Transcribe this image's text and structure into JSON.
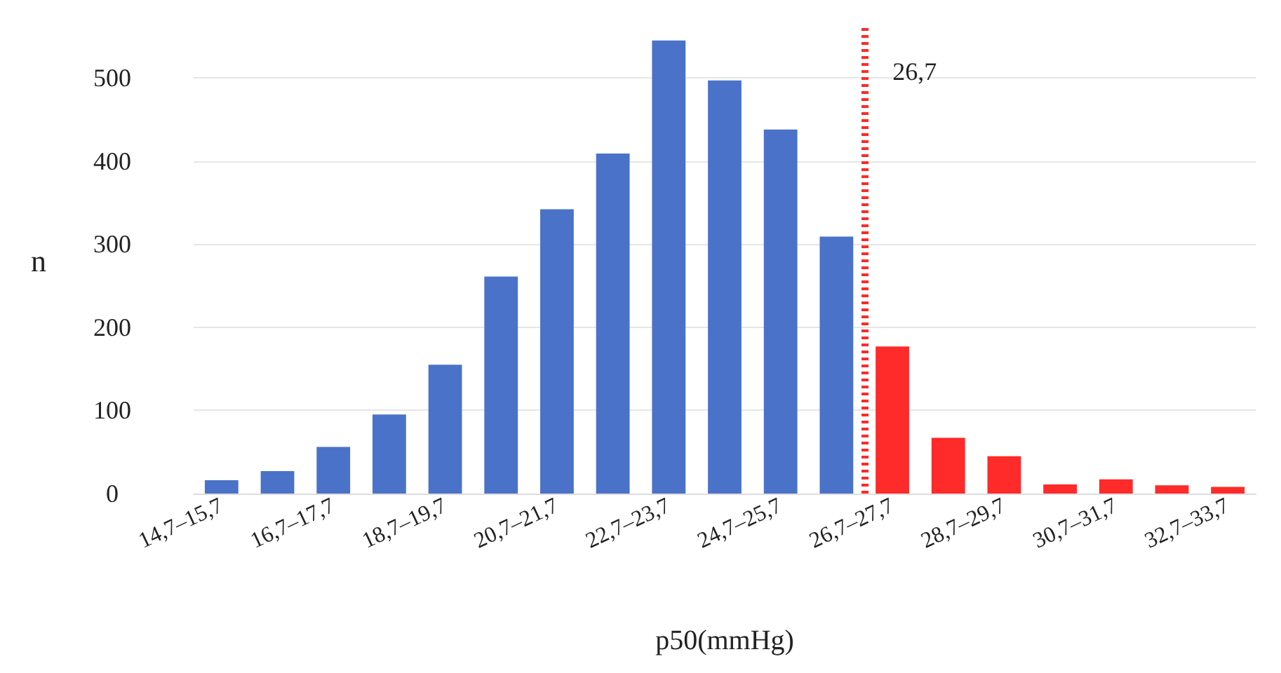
{
  "chart_data": {
    "type": "bar",
    "xlabel": "p50(mmHg)",
    "ylabel": "n",
    "categories": [
      "14,7–15,7",
      null,
      "16,7–17,7",
      null,
      "18,7–19,7",
      null,
      "20,7–21,7",
      null,
      "22,7–23,7",
      null,
      "24,7–25,7",
      null,
      "26,7–27,7",
      null,
      "28,7–29,7",
      null,
      "30,7–31,7",
      null,
      "32,7–33,7"
    ],
    "values": [
      16,
      27,
      56,
      95,
      155,
      261,
      342,
      409,
      545,
      497,
      438,
      309,
      177,
      67,
      45,
      11,
      17,
      10,
      8
    ],
    "colors": [
      "#4a72c8",
      "#4a72c8",
      "#4a72c8",
      "#4a72c8",
      "#4a72c8",
      "#4a72c8",
      "#4a72c8",
      "#4a72c8",
      "#4a72c8",
      "#4a72c8",
      "#4a72c8",
      "#4a72c8",
      "#ff2a2a",
      "#ff2a2a",
      "#ff2a2a",
      "#ff2a2a",
      "#ff2a2a",
      "#ff2a2a",
      "#ff2a2a"
    ],
    "ylim": [
      0,
      560
    ],
    "yticks": [
      0,
      100,
      200,
      300,
      400,
      500
    ],
    "ref_lines": [
      {
        "axis": "x",
        "value": "26,7–27,7",
        "label": "26,7",
        "color": "#ff2a2a",
        "line_style": "dotted"
      }
    ],
    "grid": "y"
  }
}
